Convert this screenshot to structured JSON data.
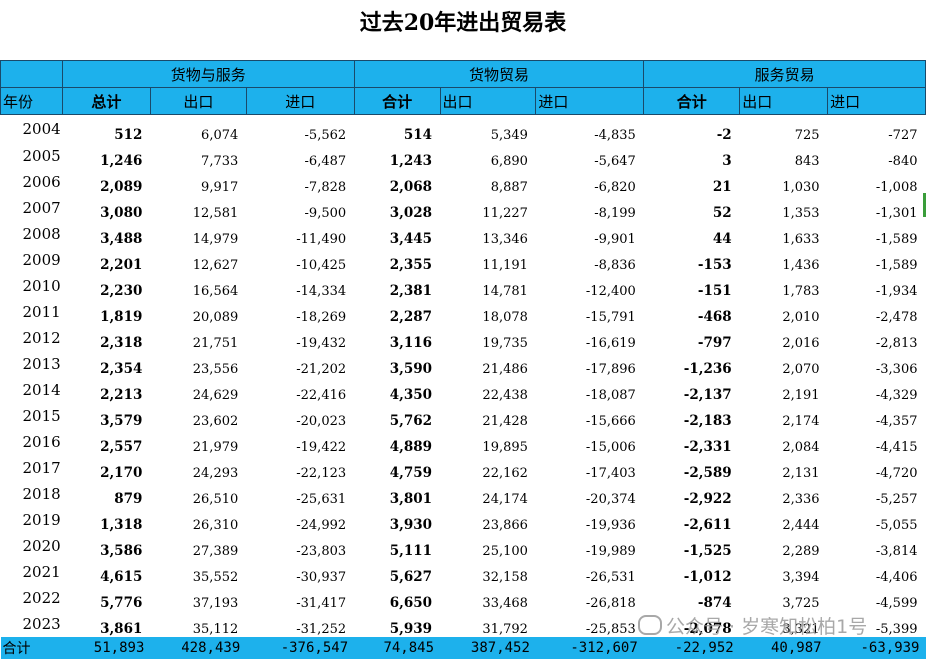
{
  "title": "过去20年进出贸易表",
  "header": {
    "year_label": "年份",
    "groups": [
      "货物与服务",
      "货物贸易",
      "服务贸易"
    ],
    "subs": [
      "总计",
      "出口",
      "进口",
      "合计",
      "出口",
      "进口",
      "合计",
      "出口",
      "进口"
    ]
  },
  "rows": [
    [
      "2004",
      "512",
      "6,074",
      "-5,562",
      "514",
      "5,349",
      "-4,835",
      "-2",
      "725",
      "-727"
    ],
    [
      "2005",
      "1,246",
      "7,733",
      "-6,487",
      "1,243",
      "6,890",
      "-5,647",
      "3",
      "843",
      "-840"
    ],
    [
      "2006",
      "2,089",
      "9,917",
      "-7,828",
      "2,068",
      "8,887",
      "-6,820",
      "21",
      "1,030",
      "-1,008"
    ],
    [
      "2007",
      "3,080",
      "12,581",
      "-9,500",
      "3,028",
      "11,227",
      "-8,199",
      "52",
      "1,353",
      "-1,301"
    ],
    [
      "2008",
      "3,488",
      "14,979",
      "-11,490",
      "3,445",
      "13,346",
      "-9,901",
      "44",
      "1,633",
      "-1,589"
    ],
    [
      "2009",
      "2,201",
      "12,627",
      "-10,425",
      "2,355",
      "11,191",
      "-8,836",
      "-153",
      "1,436",
      "-1,589"
    ],
    [
      "2010",
      "2,230",
      "16,564",
      "-14,334",
      "2,381",
      "14,781",
      "-12,400",
      "-151",
      "1,783",
      "-1,934"
    ],
    [
      "2011",
      "1,819",
      "20,089",
      "-18,269",
      "2,287",
      "18,078",
      "-15,791",
      "-468",
      "2,010",
      "-2,478"
    ],
    [
      "2012",
      "2,318",
      "21,751",
      "-19,432",
      "3,116",
      "19,735",
      "-16,619",
      "-797",
      "2,016",
      "-2,813"
    ],
    [
      "2013",
      "2,354",
      "23,556",
      "-21,202",
      "3,590",
      "21,486",
      "-17,896",
      "-1,236",
      "2,070",
      "-3,306"
    ],
    [
      "2014",
      "2,213",
      "24,629",
      "-22,416",
      "4,350",
      "22,438",
      "-18,087",
      "-2,137",
      "2,191",
      "-4,329"
    ],
    [
      "2015",
      "3,579",
      "23,602",
      "-20,023",
      "5,762",
      "21,428",
      "-15,666",
      "-2,183",
      "2,174",
      "-4,357"
    ],
    [
      "2016",
      "2,557",
      "21,979",
      "-19,422",
      "4,889",
      "19,895",
      "-15,006",
      "-2,331",
      "2,084",
      "-4,415"
    ],
    [
      "2017",
      "2,170",
      "24,293",
      "-22,123",
      "4,759",
      "22,162",
      "-17,403",
      "-2,589",
      "2,131",
      "-4,720"
    ],
    [
      "2018",
      "879",
      "26,510",
      "-25,631",
      "3,801",
      "24,174",
      "-20,374",
      "-2,922",
      "2,336",
      "-5,257"
    ],
    [
      "2019",
      "1,318",
      "26,310",
      "-24,992",
      "3,930",
      "23,866",
      "-19,936",
      "-2,611",
      "2,444",
      "-5,055"
    ],
    [
      "2020",
      "3,586",
      "27,389",
      "-23,803",
      "5,111",
      "25,100",
      "-19,989",
      "-1,525",
      "2,289",
      "-3,814"
    ],
    [
      "2021",
      "4,615",
      "35,552",
      "-30,937",
      "5,627",
      "32,158",
      "-26,531",
      "-1,012",
      "3,394",
      "-4,406"
    ],
    [
      "2022",
      "5,776",
      "37,193",
      "-31,417",
      "6,650",
      "33,468",
      "-26,818",
      "-874",
      "3,725",
      "-4,599"
    ],
    [
      "2023",
      "3,861",
      "35,112",
      "-31,252",
      "5,939",
      "31,792",
      "-25,853",
      "-2,078",
      "3,321",
      "-5,399"
    ]
  ],
  "total": {
    "label": "合计",
    "values": [
      "51,893",
      "428,439",
      "-376,547",
      "74,845",
      "387,452",
      "-312,607",
      "-22,952",
      "40,987",
      "-63,939"
    ]
  },
  "watermark": "公众号 · 岁寒知松柏1号"
}
